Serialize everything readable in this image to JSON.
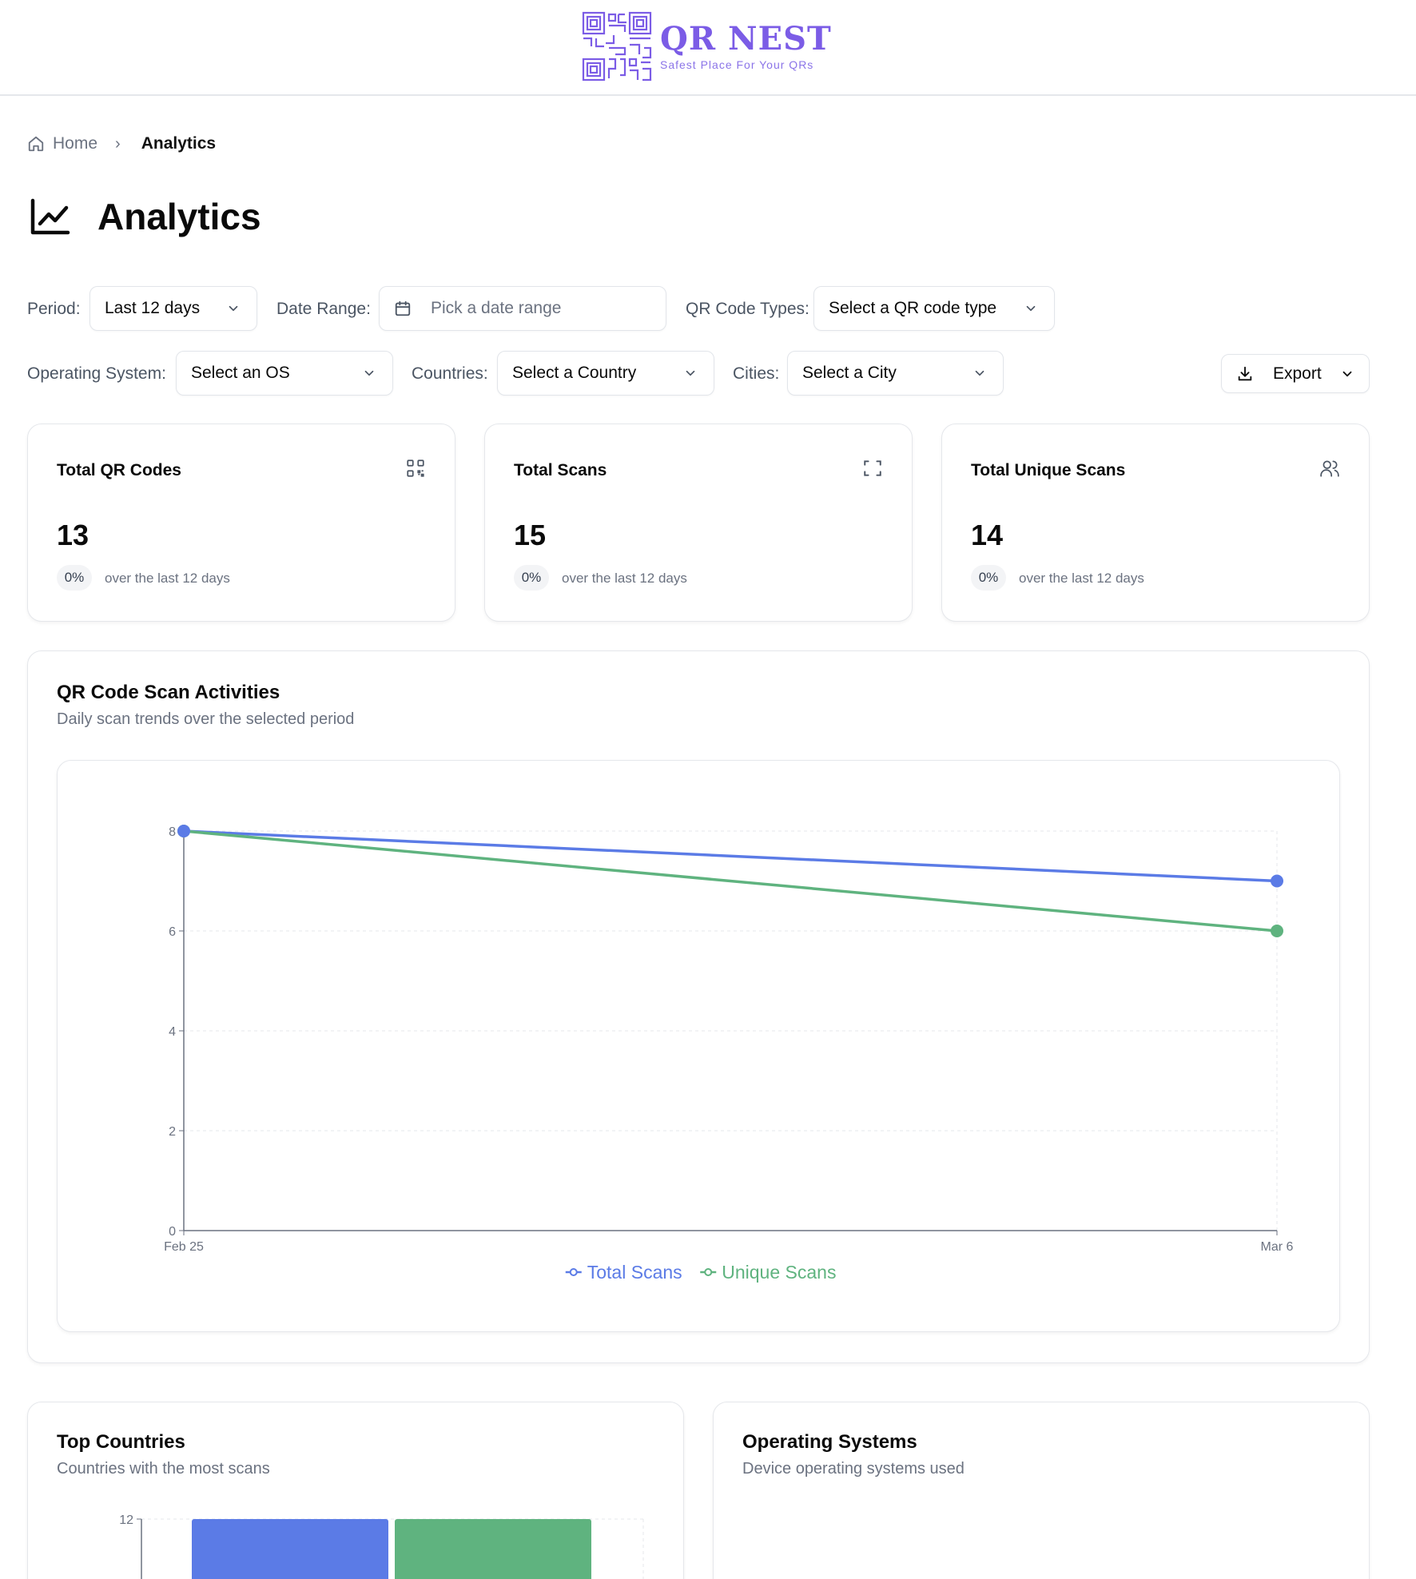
{
  "brand": {
    "name": "QR NEST",
    "tagline": "Safest Place For Your QRs",
    "color": "#7b5ce6"
  },
  "breadcrumb": {
    "home": "Home",
    "current": "Analytics"
  },
  "page": {
    "title": "Analytics"
  },
  "filters": {
    "period": {
      "label": "Period:",
      "value": "Last 12 days"
    },
    "date_range": {
      "label": "Date Range:",
      "placeholder": "Pick a date range"
    },
    "qr_types": {
      "label": "QR Code Types:",
      "value": "Select a QR code type"
    },
    "os": {
      "label": "Operating System:",
      "value": "Select an OS"
    },
    "countries": {
      "label": "Countries:",
      "value": "Select a Country"
    },
    "cities": {
      "label": "Cities:",
      "value": "Select a City"
    },
    "export_label": "Export"
  },
  "stats": [
    {
      "title": "Total QR Codes",
      "value": "13",
      "change": "0%",
      "note": "over the last 12 days",
      "icon": "qr-code-icon"
    },
    {
      "title": "Total Scans",
      "value": "15",
      "change": "0%",
      "note": "over the last 12 days",
      "icon": "scan-icon"
    },
    {
      "title": "Total Unique Scans",
      "value": "14",
      "change": "0%",
      "note": "over the last 12 days",
      "icon": "users-icon"
    }
  ],
  "activity": {
    "title": "QR Code Scan Activities",
    "subtitle": "Daily scan trends over the selected period"
  },
  "chart_data": [
    {
      "type": "line",
      "x": [
        "Feb 25",
        "Mar 6"
      ],
      "series": [
        {
          "name": "Total Scans",
          "values": [
            8,
            7
          ],
          "color": "#5b7be6"
        },
        {
          "name": "Unique Scans",
          "values": [
            8,
            6
          ],
          "color": "#5fb37f"
        }
      ],
      "ylim": [
        0,
        8
      ],
      "yticks": [
        0,
        2,
        4,
        6,
        8
      ],
      "grid": true,
      "legend": "bottom-center"
    },
    {
      "type": "bar",
      "ylim": [
        0,
        12
      ],
      "yticks": [
        12
      ],
      "series": [
        {
          "name": "",
          "values": [
            12
          ],
          "color": "#5b7be6"
        },
        {
          "name": "",
          "values": [
            12
          ],
          "color": "#5fb37f"
        }
      ]
    }
  ],
  "top_countries": {
    "title": "Top Countries",
    "subtitle": "Countries with the most scans"
  },
  "operating_systems": {
    "title": "Operating Systems",
    "subtitle": "Device operating systems used"
  }
}
